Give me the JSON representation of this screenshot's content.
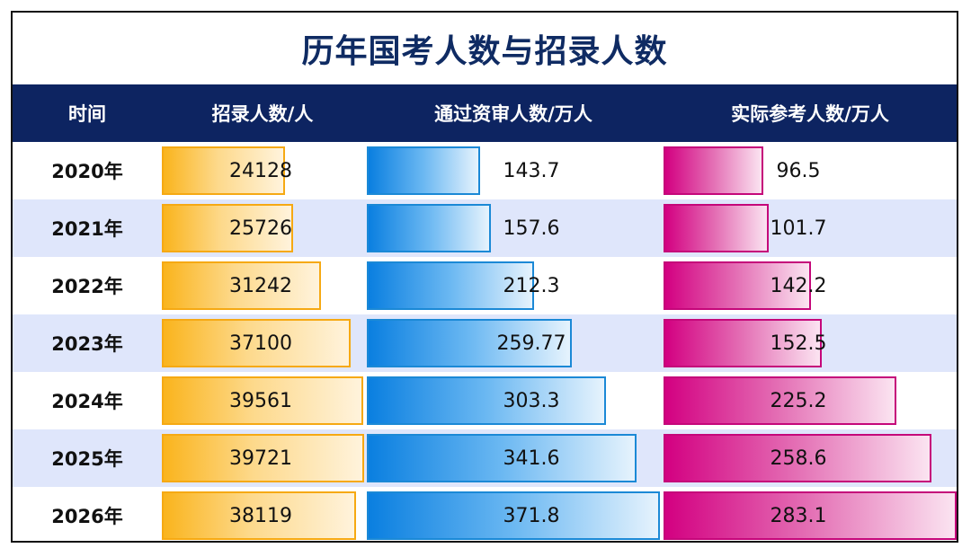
{
  "title": "历年国考人数与招录人数",
  "columns": {
    "time": "时间",
    "recruit": "招录人数/人",
    "passed": "通过资审人数/万人",
    "actual": "实际参考人数/万人"
  },
  "colors": {
    "header_bg": "#0d2461",
    "title": "#0f2b63",
    "recruit": "#fab41d",
    "passed": "#0a7fe0",
    "actual": "#d30081",
    "row_alt": "#dfe6fb"
  },
  "chart_data": {
    "type": "table",
    "categories": [
      "2020年",
      "2021年",
      "2022年",
      "2023年",
      "2024年",
      "2025年",
      "2026年"
    ],
    "series": [
      {
        "name": "招录人数/人",
        "values": [
          "24128",
          "25726",
          "31242",
          "37100",
          "39561",
          "39721",
          "38119"
        ]
      },
      {
        "name": "通过资审人数/万人",
        "values": [
          "143.7",
          "157.6",
          "212.3",
          "259.77",
          "303.3",
          "341.6",
          "371.8"
        ]
      },
      {
        "name": "实际参考人数/万人",
        "values": [
          "96.5",
          "101.7",
          "142.2",
          "152.5",
          "225.2",
          "258.6",
          "283.1"
        ]
      }
    ]
  }
}
